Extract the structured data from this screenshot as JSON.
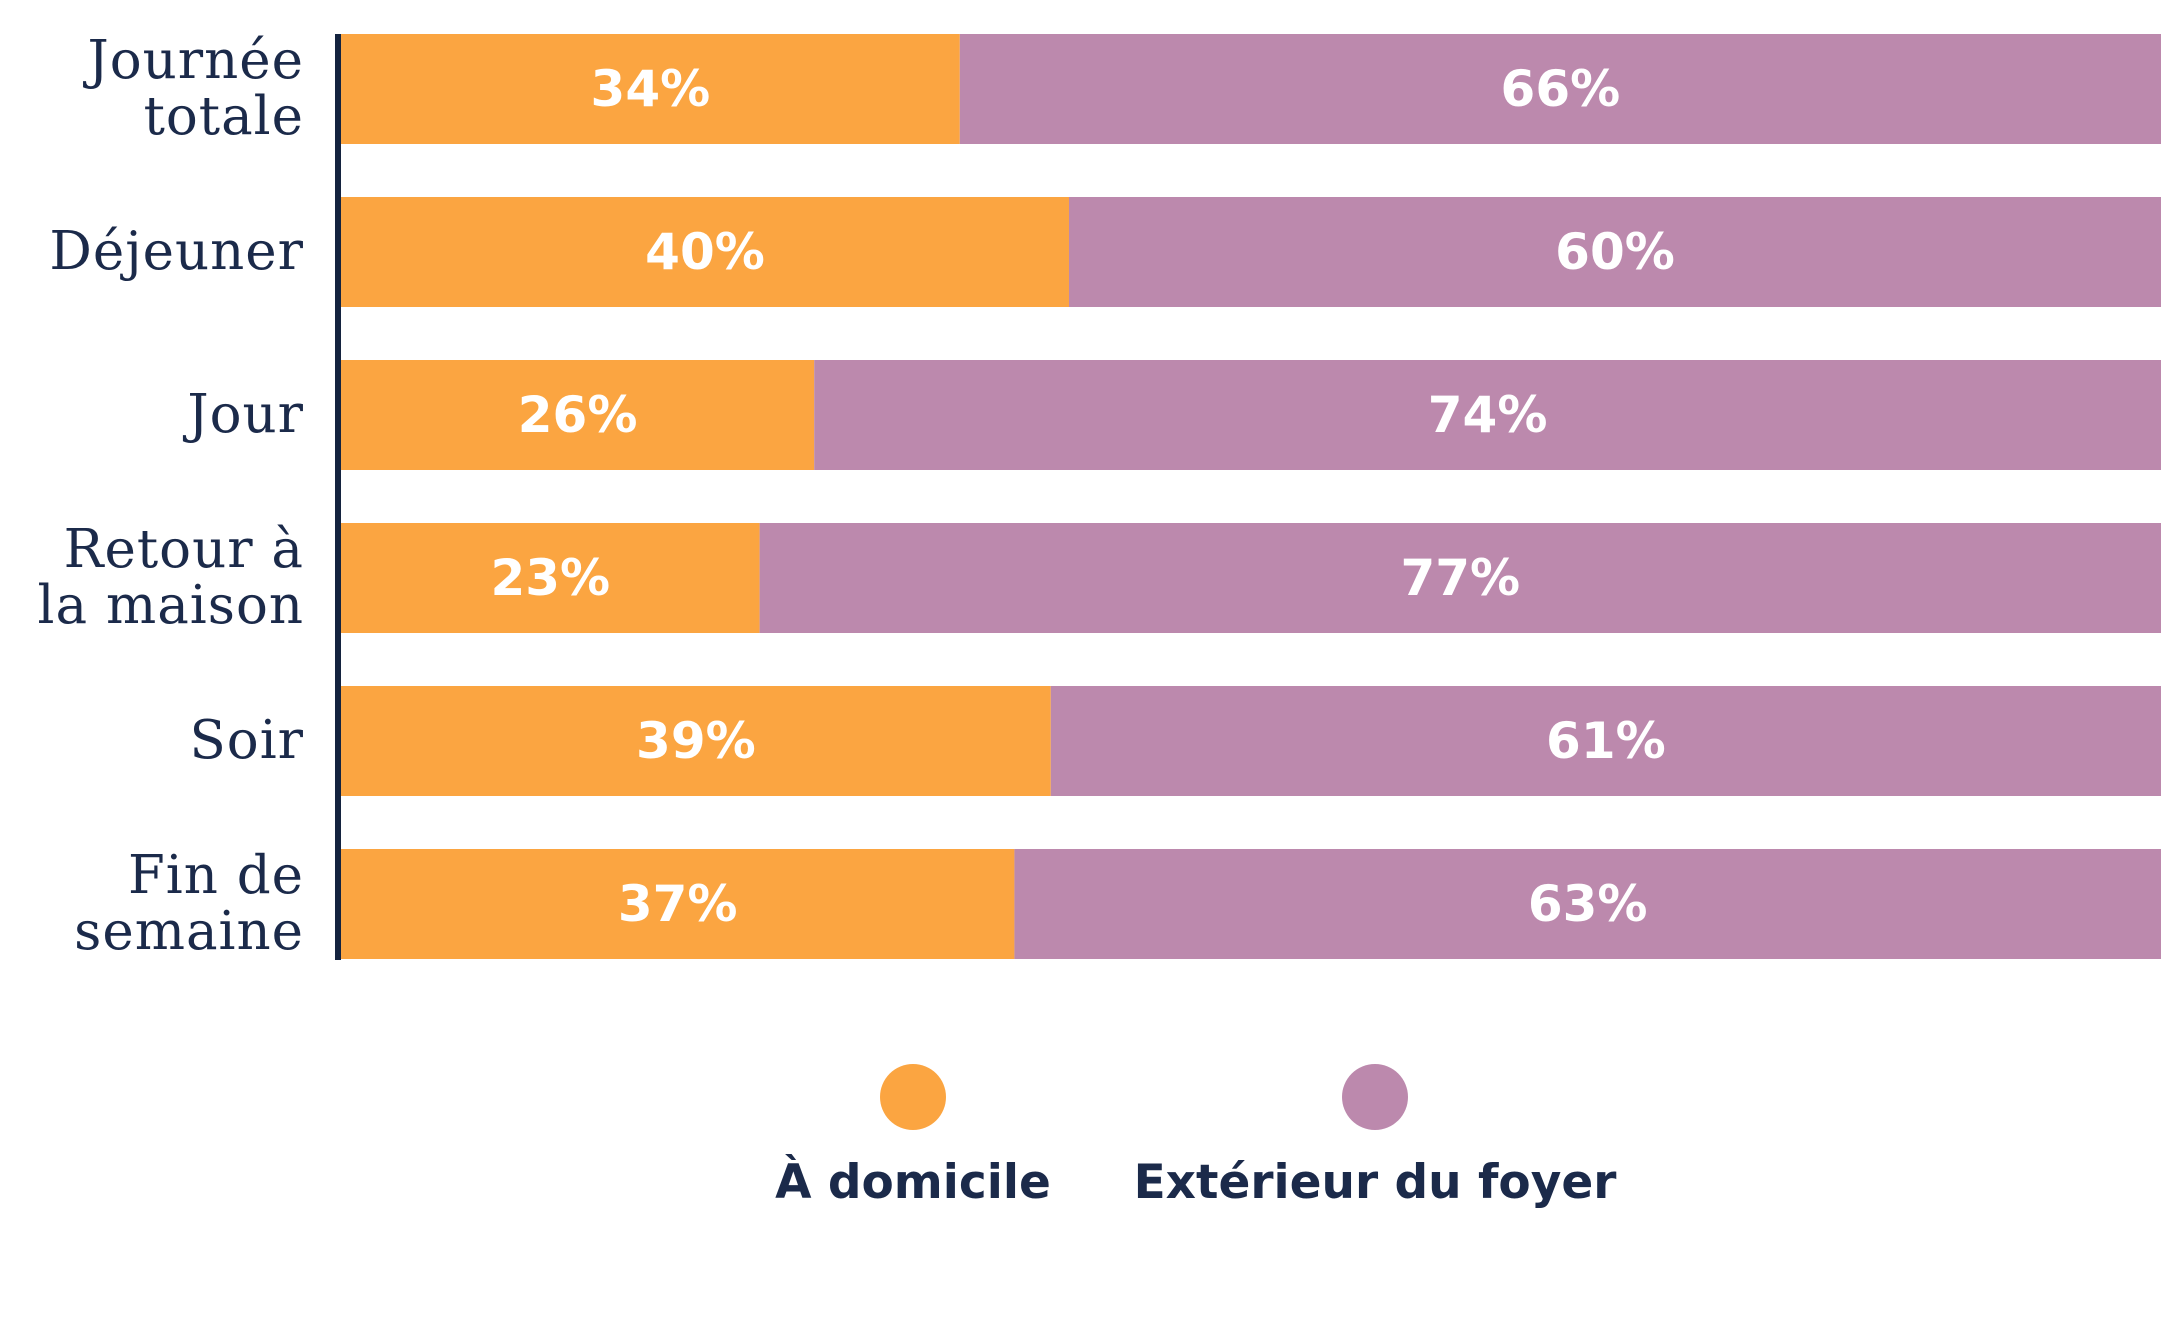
{
  "chart_data": {
    "type": "bar",
    "orientation": "horizontal",
    "stacked": true,
    "categories": [
      [
        "Journée",
        "totale"
      ],
      [
        "Déjeuner"
      ],
      [
        "Jour"
      ],
      [
        "Retour à",
        "la maison"
      ],
      [
        "Soir"
      ],
      [
        "Fin de",
        "semaine"
      ]
    ],
    "series": [
      {
        "name": "À domicile",
        "color": "#fba541",
        "values": [
          34,
          40,
          26,
          23,
          39,
          37
        ],
        "labels": [
          "34%",
          "40%",
          "26%",
          "23%",
          "39%",
          "37%"
        ]
      },
      {
        "name": "Extérieur du foyer",
        "color": "#bc89ad",
        "values": [
          66,
          60,
          74,
          77,
          61,
          63
        ],
        "labels": [
          "66%",
          "60%",
          "74%",
          "77%",
          "61%",
          "63%"
        ]
      }
    ],
    "xlim": [
      0,
      100
    ],
    "unit": "%",
    "grid": false,
    "legend_position": "bottom"
  }
}
